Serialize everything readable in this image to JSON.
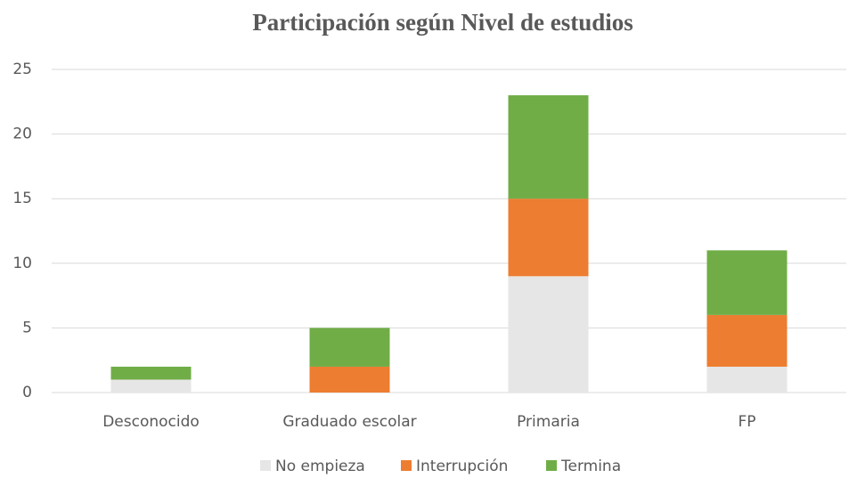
{
  "chart_data": {
    "type": "stacked_bar",
    "title": "Participación según Nivel de estudios",
    "categories": [
      "Desconocido",
      "Graduado escolar",
      "Primaria",
      "FP"
    ],
    "series": [
      {
        "name": "No empieza",
        "color": "#e7e6e6",
        "values": [
          1,
          0,
          9,
          2
        ]
      },
      {
        "name": "Interrupción",
        "color": "#ed7d31",
        "values": [
          0,
          2,
          6,
          4
        ]
      },
      {
        "name": "Termina",
        "color": "#70ad47",
        "values": [
          1,
          3,
          8,
          5
        ]
      }
    ],
    "ylim": [
      0,
      25
    ],
    "yticks": [
      0,
      5,
      10,
      15,
      20,
      25
    ],
    "grid": true,
    "legend": "bottom"
  }
}
